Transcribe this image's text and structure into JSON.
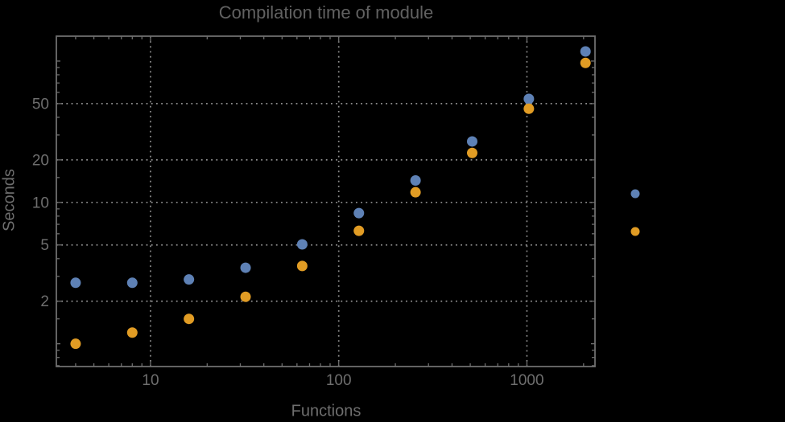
{
  "title": "Compilation time of module",
  "chart_data": {
    "type": "scatter",
    "title": "Compilation time of module",
    "xlabel": "Functions",
    "ylabel": "Seconds",
    "x_scale": "log",
    "y_scale": "log",
    "xlim": [
      3.16,
      2300
    ],
    "ylim": [
      0.69,
      150
    ],
    "grid": "dotted lines at labeled ticks, both axes",
    "legend_position": "outside-right-middle",
    "x": [
      4,
      8,
      16,
      32,
      64,
      128,
      256,
      512,
      1024,
      2048
    ],
    "series": [
      {
        "name": "series-blue",
        "color": "#5e81b5",
        "values": [
          2.7,
          2.7,
          2.85,
          3.45,
          5.05,
          8.4,
          14.3,
          27,
          54,
          117
        ]
      },
      {
        "name": "series-orange",
        "color": "#e19c24",
        "values": [
          1.0,
          1.2,
          1.5,
          2.15,
          3.55,
          6.3,
          11.8,
          22.4,
          46,
          97
        ]
      }
    ],
    "x_ticks": {
      "major": [
        {
          "v": 10,
          "label": "10"
        },
        {
          "v": 100,
          "label": "100"
        },
        {
          "v": 1000,
          "label": "1000"
        }
      ],
      "minor": [
        4,
        5,
        6,
        7,
        8,
        9,
        20,
        30,
        40,
        50,
        60,
        70,
        80,
        90,
        200,
        300,
        400,
        500,
        600,
        700,
        800,
        900,
        2000
      ]
    },
    "y_ticks": {
      "major": [
        {
          "v": 2,
          "label": "2"
        },
        {
          "v": 5,
          "label": "5"
        },
        {
          "v": 10,
          "label": "10"
        },
        {
          "v": 20,
          "label": "20"
        },
        {
          "v": 50,
          "label": "50"
        }
      ],
      "medium": [
        1,
        100
      ],
      "minor": [
        0.7,
        0.8,
        0.9,
        1.5,
        3,
        4,
        6,
        7,
        8,
        9,
        15,
        30,
        40,
        60,
        70,
        80,
        90
      ]
    }
  },
  "legend": {
    "markers": [
      {
        "series": "series-blue",
        "color": "#5e81b5"
      },
      {
        "series": "series-orange",
        "color": "#e19c24"
      }
    ]
  },
  "colors": {
    "background": "#000000",
    "frame": "#6e6e6e",
    "grid": "#8f8f8f",
    "tick_label": "#6e6e6e",
    "title_text": "#616161",
    "series_blue": "#5e81b5",
    "series_orange": "#e19c24"
  }
}
